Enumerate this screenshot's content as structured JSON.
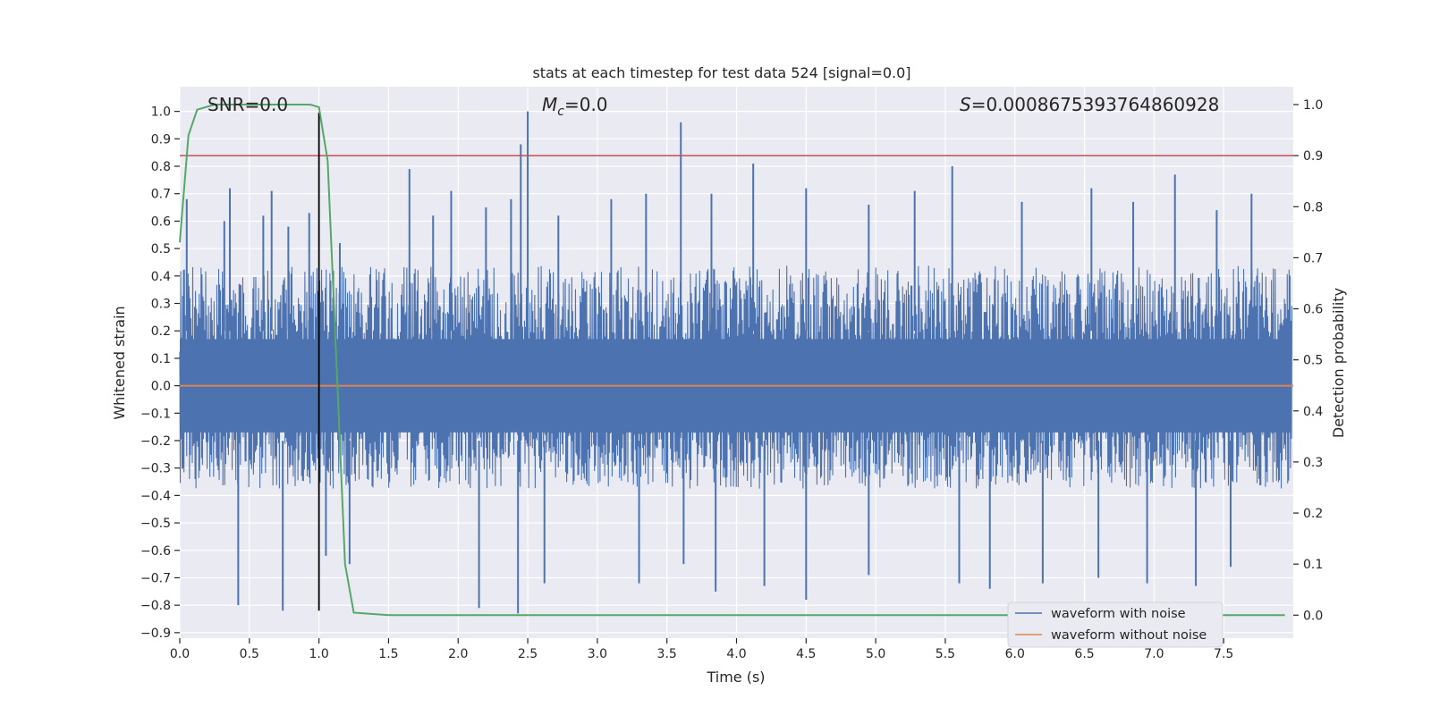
{
  "chart_data": {
    "type": "line",
    "title": "stats at each timestep for test data 524 [signal=0.0]",
    "xlabel": "Time (s)",
    "ylabel_left": "Whitened strain",
    "ylabel_right": "Detection probability",
    "xlim": [
      0.0,
      8.0
    ],
    "ylim_left": [
      -0.92,
      1.09
    ],
    "ylim_right": [
      -0.045,
      1.035
    ],
    "xticks": [
      0.0,
      0.5,
      1.0,
      1.5,
      2.0,
      2.5,
      3.0,
      3.5,
      4.0,
      4.5,
      5.0,
      5.5,
      6.0,
      6.5,
      7.0,
      7.5
    ],
    "xtick_labels": [
      "0.0",
      "0.5",
      "1.0",
      "1.5",
      "2.0",
      "2.5",
      "3.0",
      "3.5",
      "4.0",
      "4.5",
      "5.0",
      "5.5",
      "6.0",
      "6.5",
      "7.0",
      "7.5"
    ],
    "yticks_left": [
      1.0,
      0.9,
      0.8,
      0.7,
      0.6,
      0.5,
      0.4,
      0.3,
      0.2,
      0.1,
      0.0,
      -0.1,
      -0.2,
      -0.3,
      -0.4,
      -0.5,
      -0.6,
      -0.7,
      -0.8,
      -0.9
    ],
    "ytick_labels_left": [
      "1.0",
      "0.9",
      "0.8",
      "0.7",
      "0.6",
      "0.5",
      "0.4",
      "0.3",
      "0.2",
      "0.1",
      "0.0",
      "−0.1",
      "−0.2",
      "−0.3",
      "−0.4",
      "−0.5",
      "−0.6",
      "−0.7",
      "−0.8",
      "−0.9"
    ],
    "yticks_right": [
      1.0,
      0.9,
      0.8,
      0.7,
      0.6,
      0.5,
      0.4,
      0.3,
      0.2,
      0.1,
      0.0
    ],
    "ytick_labels_right": [
      "1.0",
      "0.9",
      "0.8",
      "0.7",
      "0.6",
      "0.5",
      "0.4",
      "0.3",
      "0.2",
      "0.1",
      "0.0"
    ],
    "grid": true,
    "legend_position": "lower-right",
    "annotations": {
      "snr": "SNR=0.0",
      "mc_symbol": "M",
      "mc_sub": "c",
      "mc_value": "=0.0",
      "s_symbol": "S",
      "s_value": "=0.0008675393764860928"
    },
    "series": [
      {
        "name": "waveform with noise",
        "axis": "left",
        "color": "#4c72b0",
        "note_style": "dense noise band",
        "band_typical": [
          -0.3,
          0.35
        ],
        "spikes_up": [
          [
            0.05,
            0.68
          ],
          [
            0.32,
            0.6
          ],
          [
            0.36,
            0.72
          ],
          [
            0.6,
            0.62
          ],
          [
            0.66,
            0.71
          ],
          [
            0.78,
            0.58
          ],
          [
            0.93,
            0.63
          ],
          [
            1.15,
            0.52
          ],
          [
            1.65,
            0.79
          ],
          [
            1.82,
            0.62
          ],
          [
            1.95,
            0.71
          ],
          [
            2.2,
            0.65
          ],
          [
            2.38,
            0.68
          ],
          [
            2.45,
            0.88
          ],
          [
            2.5,
            1.0
          ],
          [
            2.72,
            0.62
          ],
          [
            3.1,
            0.68
          ],
          [
            3.35,
            0.7
          ],
          [
            3.6,
            0.96
          ],
          [
            3.82,
            0.7
          ],
          [
            4.12,
            0.81
          ],
          [
            4.5,
            0.72
          ],
          [
            4.95,
            0.66
          ],
          [
            5.28,
            0.71
          ],
          [
            5.55,
            0.8
          ],
          [
            6.05,
            0.67
          ],
          [
            6.55,
            0.72
          ],
          [
            6.85,
            0.67
          ],
          [
            7.15,
            0.77
          ],
          [
            7.45,
            0.64
          ],
          [
            7.7,
            0.7
          ]
        ],
        "spikes_down": [
          [
            0.42,
            -0.8
          ],
          [
            0.74,
            -0.82
          ],
          [
            1.05,
            -0.62
          ],
          [
            1.22,
            -0.65
          ],
          [
            2.15,
            -0.81
          ],
          [
            2.43,
            -0.83
          ],
          [
            2.62,
            -0.72
          ],
          [
            3.3,
            -0.72
          ],
          [
            3.62,
            -0.65
          ],
          [
            3.85,
            -0.75
          ],
          [
            4.2,
            -0.73
          ],
          [
            4.5,
            -0.78
          ],
          [
            4.95,
            -0.69
          ],
          [
            5.6,
            -0.72
          ],
          [
            5.82,
            -0.74
          ],
          [
            6.2,
            -0.72
          ],
          [
            6.6,
            -0.7
          ],
          [
            6.95,
            -0.72
          ],
          [
            7.3,
            -0.73
          ],
          [
            7.55,
            -0.66
          ]
        ]
      },
      {
        "name": "waveform without noise",
        "axis": "left",
        "color": "#dd8452",
        "x": [
          0.0,
          8.0
        ],
        "y": [
          0.0,
          0.0
        ]
      },
      {
        "name": "",
        "axis": "right",
        "color": "#55a868",
        "x": [
          0.0,
          0.0625,
          0.125,
          0.25,
          0.5,
          0.75,
          0.9375,
          1.0,
          1.0625,
          1.125,
          1.1875,
          1.25,
          1.5,
          2.0,
          3.0,
          4.0,
          5.0,
          6.0,
          7.0,
          7.94
        ],
        "y": [
          0.73,
          0.94,
          0.99,
          1.0,
          1.0,
          1.0,
          1.0,
          0.995,
          0.89,
          0.5,
          0.1,
          0.005,
          0.0,
          0.0,
          0.0,
          0.0,
          0.0,
          0.0,
          0.0,
          0.0
        ]
      }
    ],
    "reference_lines": [
      {
        "axis": "right",
        "orientation": "horizontal",
        "value": 0.9,
        "color": "#c44e52"
      },
      {
        "axis": "left",
        "orientation": "vertical",
        "value": 1.0,
        "color": "#000000",
        "y_range": [
          -0.82,
          0.995
        ]
      }
    ]
  }
}
